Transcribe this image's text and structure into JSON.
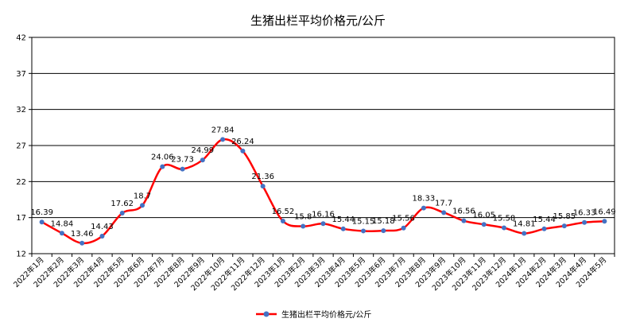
{
  "chart_data": {
    "type": "line",
    "title": "生猪出栏平均价格元/公斤",
    "xlabel": "",
    "ylabel": "",
    "ylim": [
      12,
      42
    ],
    "yticks": [
      12,
      17,
      22,
      27,
      32,
      37,
      42
    ],
    "grid": "horizontal",
    "legend_position": "bottom",
    "categories": [
      "2022年1月",
      "2022年2月",
      "2022年3月",
      "2022年4月",
      "2022年5月",
      "2022年6月",
      "2022年7月",
      "2022年8月",
      "2022年9月",
      "2022年10月",
      "2022年11月",
      "2022年12月",
      "2023年1月",
      "2023年2月",
      "2023年3月",
      "2023年4月",
      "2023年5月",
      "2023年6月",
      "2023年7月",
      "2023年8月",
      "2023年9月",
      "2023年10月",
      "2023年11月",
      "2023年12月",
      "2024年1月",
      "2024年2月",
      "2024年3月",
      "2024年4月",
      "2024年5月"
    ],
    "series": [
      {
        "name": "生猪出栏平均价格元/公斤",
        "color": "#ff0000",
        "marker_color": "#4472c4",
        "values": [
          16.39,
          14.84,
          13.46,
          14.43,
          17.62,
          18.7,
          24.06,
          23.73,
          24.99,
          27.84,
          26.24,
          21.36,
          16.52,
          15.8,
          16.16,
          15.44,
          15.15,
          15.18,
          15.56,
          18.33,
          17.7,
          16.56,
          16.05,
          15.58,
          14.81,
          15.44,
          15.85,
          16.33,
          16.49
        ]
      }
    ]
  }
}
